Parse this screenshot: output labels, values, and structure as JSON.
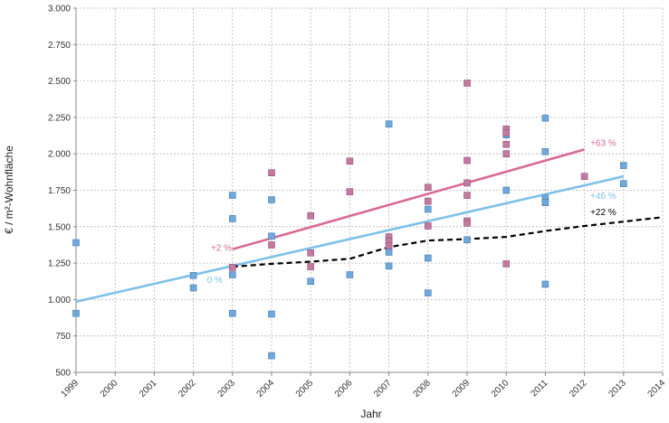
{
  "chart_data": {
    "type": "scatter",
    "xlabel": "Jahr",
    "ylabel": "€ / m²-Wohnfläche",
    "xlim": [
      1999,
      2014
    ],
    "ylim": [
      500,
      3000
    ],
    "x_ticks": [
      "1999",
      "2000",
      "2001",
      "2002",
      "2003",
      "2004",
      "2005",
      "2006",
      "2007",
      "2008",
      "2009",
      "2010",
      "2011",
      "2012",
      "2013",
      "2014"
    ],
    "y_ticks": [
      "500",
      "750",
      "1.000",
      "1.250",
      "1.500",
      "1.750",
      "2.000",
      "2.250",
      "2.500",
      "2.750",
      "3.000"
    ],
    "y_tick_values": [
      500,
      750,
      1000,
      1250,
      1500,
      1750,
      2000,
      2250,
      2500,
      2750,
      3000
    ],
    "grid": true,
    "colors": {
      "blue": "#6fa8dc",
      "pink": "#c27ba0",
      "blue_line": "#7fc1ea",
      "pink_line": "#d76b96",
      "black_line": "#000000"
    },
    "series": [
      {
        "marker": "square",
        "color": "#6fa8dc",
        "points": [
          [
            1999,
            1390
          ],
          [
            1999,
            905
          ],
          [
            2002,
            1165
          ],
          [
            2002,
            1080
          ],
          [
            2003,
            1715
          ],
          [
            2003,
            1555
          ],
          [
            2003,
            1170
          ],
          [
            2003,
            905
          ],
          [
            2004,
            1685
          ],
          [
            2004,
            1435
          ],
          [
            2004,
            900
          ],
          [
            2004,
            615
          ],
          [
            2005,
            1125
          ],
          [
            2006,
            1170
          ],
          [
            2007,
            2205
          ],
          [
            2007,
            1325
          ],
          [
            2007,
            1230
          ],
          [
            2008,
            1620
          ],
          [
            2008,
            1285
          ],
          [
            2008,
            1045
          ],
          [
            2009,
            1410
          ],
          [
            2010,
            2130
          ],
          [
            2010,
            1750
          ],
          [
            2011,
            2245
          ],
          [
            2011,
            2015
          ],
          [
            2011,
            1695
          ],
          [
            2011,
            1665
          ],
          [
            2011,
            1105
          ],
          [
            2013,
            1920
          ],
          [
            2013,
            1795
          ]
        ]
      },
      {
        "marker": "square",
        "color": "#c27ba0",
        "points": [
          [
            2003,
            1220
          ],
          [
            2004,
            1870
          ],
          [
            2004,
            1375
          ],
          [
            2005,
            1575
          ],
          [
            2005,
            1320
          ],
          [
            2005,
            1225
          ],
          [
            2006,
            1950
          ],
          [
            2006,
            1740
          ],
          [
            2007,
            1430
          ],
          [
            2007,
            1400
          ],
          [
            2007,
            1370
          ],
          [
            2008,
            1770
          ],
          [
            2008,
            1675
          ],
          [
            2008,
            1505
          ],
          [
            2009,
            2485
          ],
          [
            2009,
            1955
          ],
          [
            2009,
            1800
          ],
          [
            2009,
            1715
          ],
          [
            2009,
            1540
          ],
          [
            2009,
            1525
          ],
          [
            2010,
            2170
          ],
          [
            2010,
            2145
          ],
          [
            2010,
            2065
          ],
          [
            2010,
            2000
          ],
          [
            2010,
            1245
          ],
          [
            2012,
            1845
          ]
        ]
      }
    ],
    "trend_lines": [
      {
        "style": "solid",
        "color": "#7fc1ea",
        "points": [
          [
            1999,
            985
          ],
          [
            2013,
            1845
          ]
        ]
      },
      {
        "style": "solid",
        "color": "#d76b96",
        "points": [
          [
            2003,
            1345
          ],
          [
            2012,
            2030
          ]
        ]
      },
      {
        "style": "dashed",
        "color": "#000000",
        "points": [
          [
            2003,
            1225
          ],
          [
            2004,
            1245
          ],
          [
            2005,
            1260
          ],
          [
            2006,
            1280
          ],
          [
            2007,
            1360
          ],
          [
            2008,
            1405
          ],
          [
            2009,
            1415
          ],
          [
            2010,
            1430
          ],
          [
            2011,
            1470
          ],
          [
            2012,
            1505
          ],
          [
            2013,
            1535
          ],
          [
            2014,
            1565
          ]
        ]
      }
    ],
    "annotations": [
      {
        "text": "+63 %",
        "color": "#d76b96",
        "x": 2012.15,
        "y": 2055
      },
      {
        "text": "+46 %",
        "color": "#7fc1ea",
        "x": 2012.15,
        "y": 1690
      },
      {
        "text": "+22 %",
        "color": "#000000",
        "x": 2012.15,
        "y": 1580
      },
      {
        "text": "+2 %",
        "color": "#d76b96",
        "x": 2002.45,
        "y": 1335
      },
      {
        "text": "0 %",
        "color": "#7fc1ea",
        "x": 2002.35,
        "y": 1115
      }
    ]
  }
}
